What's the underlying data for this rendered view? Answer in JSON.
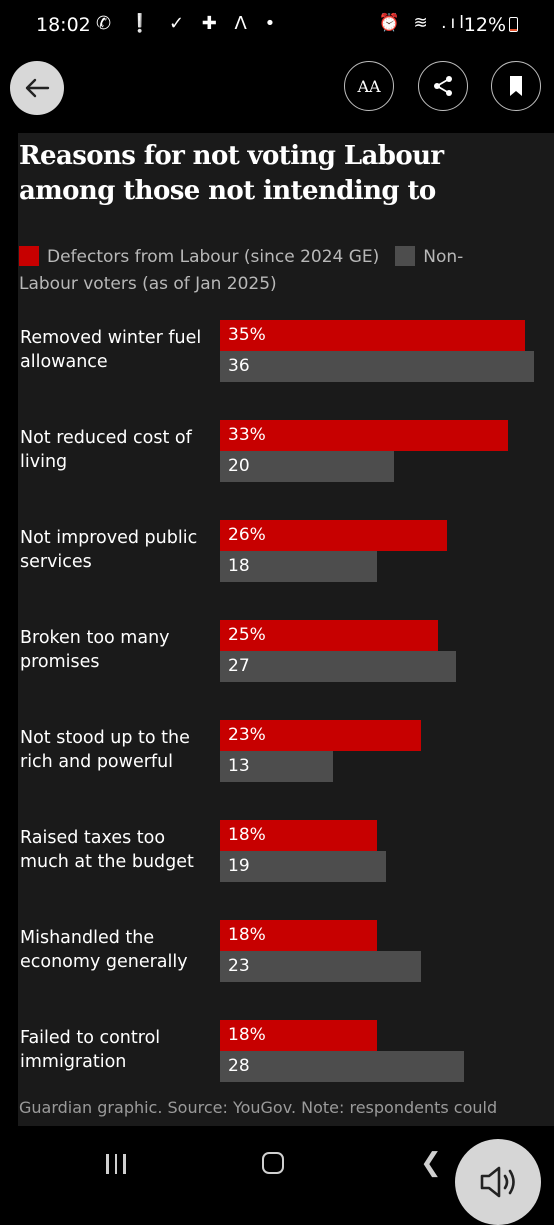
{
  "status_bar": {
    "time": "18:02",
    "left_icons": "✆ ❕ ✓ ✚ Λ •",
    "right_icons": "⏰ ≋ .ıl",
    "battery": "12%"
  },
  "toolbar": {
    "font_button_label": "AA",
    "icons": [
      "arrow-left-icon",
      "text-size-icon",
      "share-icon",
      "bookmark-icon"
    ]
  },
  "colors": {
    "defectors": "#c70000",
    "non_labour": "#4d4d4d",
    "panel_background": "#1a1a1a"
  },
  "chart_data": {
    "type": "bar",
    "orientation": "horizontal",
    "title": "Reasons for not voting Labour among those not intending to",
    "legend_placement": "top",
    "categories": [
      "Removed winter fuel allowance",
      "Not reduced cost of living",
      "Not improved public services",
      "Broken too many promises",
      "Not stood up to the rich and powerful",
      "Raised taxes too much at the budget",
      "Mishandled the economy generally",
      "Failed to control immigration"
    ],
    "series": [
      {
        "name": "Defectors from Labour (since 2024 GE)",
        "values": [
          35,
          33,
          26,
          25,
          23,
          18,
          18,
          18
        ],
        "labels": [
          "35%",
          "33%",
          "26%",
          "25%",
          "23%",
          "18%",
          "18%",
          "18%"
        ]
      },
      {
        "name": "Non-Labour voters (as of Jan 2025)",
        "values": [
          36,
          20,
          18,
          27,
          13,
          19,
          23,
          28
        ],
        "labels": [
          "36",
          "20",
          "18",
          "27",
          "13",
          "19",
          "23",
          "28"
        ]
      }
    ],
    "source": "Guardian graphic. Source: YouGov. Note: respondents could"
  },
  "nav_bar": {
    "icons": [
      "recent-apps-icon",
      "home-icon",
      "back-chevron-icon"
    ],
    "back_glyph": "❮"
  },
  "floating_button": {
    "icon": "speaker-icon"
  }
}
